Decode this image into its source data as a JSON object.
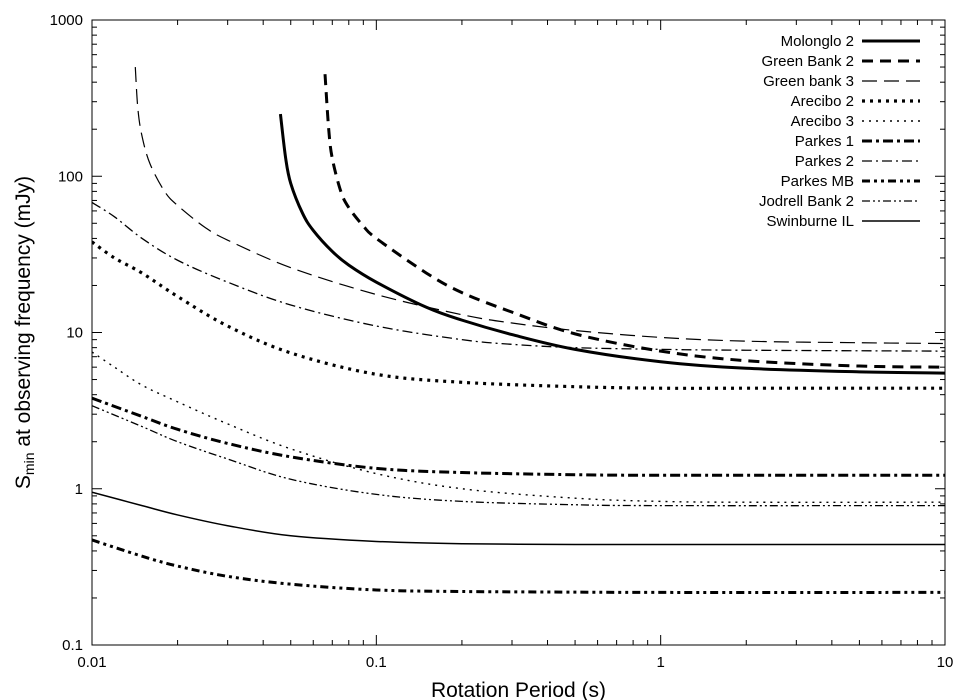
{
  "chart_data": {
    "type": "line",
    "title": "",
    "xlabel": "Rotation Period (s)",
    "ylabel": {
      "base": "S",
      "sub": "min",
      "rest": " at observing frequency (mJy)"
    },
    "xscale": "log",
    "yscale": "log",
    "xlim": [
      0.01,
      10
    ],
    "ylim": [
      0.1,
      1000
    ],
    "xticks": [
      0.01,
      0.1,
      1,
      10
    ],
    "xtick_labels": [
      "0.01",
      "0.1",
      "1",
      "10"
    ],
    "yticks": [
      0.1,
      1,
      10,
      100,
      1000
    ],
    "ytick_labels": [
      "0.1",
      "1",
      "10",
      "100",
      "1000"
    ],
    "grid": false,
    "legend_position": "top-right",
    "series": [
      {
        "name": "Molonglo 2",
        "style": "solid-thick",
        "x": [
          0.046,
          0.048,
          0.05,
          0.055,
          0.06,
          0.07,
          0.08,
          0.1,
          0.15,
          0.2,
          0.3,
          0.5,
          1,
          2,
          5,
          10
        ],
        "y": [
          250,
          130,
          90,
          58,
          45,
          33,
          27,
          21,
          14.5,
          12,
          9.7,
          7.8,
          6.5,
          5.9,
          5.6,
          5.5
        ]
      },
      {
        "name": "Green Bank 2",
        "style": "dashed-thick",
        "x": [
          0.066,
          0.068,
          0.07,
          0.075,
          0.08,
          0.09,
          0.1,
          0.15,
          0.2,
          0.3,
          0.5,
          1,
          2,
          5,
          10
        ],
        "y": [
          450,
          200,
          130,
          80,
          63,
          48,
          40,
          24,
          18,
          13.5,
          9.8,
          7.6,
          6.6,
          6.1,
          6.0
        ]
      },
      {
        "name": "Green bank 3",
        "style": "dashed-thin",
        "x": [
          0.0142,
          0.0145,
          0.015,
          0.016,
          0.018,
          0.02,
          0.025,
          0.03,
          0.05,
          0.1,
          0.2,
          0.3,
          0.5,
          1,
          2,
          5,
          10
        ],
        "y": [
          500,
          270,
          180,
          120,
          80,
          65,
          47,
          39,
          26,
          17.5,
          13,
          11.5,
          10.3,
          9.3,
          8.8,
          8.6,
          8.5
        ]
      },
      {
        "name": "Arecibo 2",
        "style": "dotted-thick",
        "x": [
          0.01,
          0.012,
          0.015,
          0.02,
          0.03,
          0.05,
          0.1,
          0.2,
          0.5,
          1,
          2,
          10
        ],
        "y": [
          38,
          30,
          24,
          17,
          11,
          7.4,
          5.4,
          4.8,
          4.5,
          4.4,
          4.4,
          4.4
        ]
      },
      {
        "name": "Arecibo 3",
        "style": "dotted-thin",
        "x": [
          0.01,
          0.012,
          0.015,
          0.02,
          0.03,
          0.05,
          0.1,
          0.2,
          0.5,
          1,
          2,
          10
        ],
        "y": [
          7.5,
          6,
          4.6,
          3.6,
          2.6,
          1.8,
          1.25,
          1.0,
          0.87,
          0.83,
          0.82,
          0.82
        ]
      },
      {
        "name": "Parkes 1",
        "style": "dashdot-thick",
        "x": [
          0.01,
          0.015,
          0.02,
          0.03,
          0.05,
          0.1,
          0.2,
          0.5,
          1,
          10
        ],
        "y": [
          3.8,
          2.9,
          2.4,
          1.95,
          1.6,
          1.35,
          1.27,
          1.23,
          1.22,
          1.22
        ]
      },
      {
        "name": "Parkes 2",
        "style": "dashdot-thin",
        "x": [
          0.01,
          0.012,
          0.015,
          0.02,
          0.03,
          0.05,
          0.1,
          0.2,
          0.3,
          0.5,
          1,
          2,
          10
        ],
        "y": [
          68,
          55,
          40,
          29,
          21,
          15,
          11,
          9,
          8.4,
          8,
          7.8,
          7.7,
          7.6
        ]
      },
      {
        "name": "Parkes MB",
        "style": "dashdotdot-thick",
        "x": [
          0.01,
          0.015,
          0.02,
          0.03,
          0.05,
          0.1,
          0.2,
          0.5,
          1,
          10
        ],
        "y": [
          0.47,
          0.37,
          0.32,
          0.275,
          0.245,
          0.225,
          0.22,
          0.218,
          0.217,
          0.217
        ]
      },
      {
        "name": "Jodrell Bank 2",
        "style": "dashdotdot-thin",
        "x": [
          0.01,
          0.015,
          0.02,
          0.03,
          0.05,
          0.1,
          0.2,
          0.5,
          1,
          10
        ],
        "y": [
          3.4,
          2.5,
          2.0,
          1.55,
          1.15,
          0.92,
          0.83,
          0.79,
          0.78,
          0.78
        ]
      },
      {
        "name": "Swinburne IL",
        "style": "solid-thin",
        "x": [
          0.01,
          0.015,
          0.02,
          0.03,
          0.05,
          0.1,
          0.2,
          0.5,
          1,
          10
        ],
        "y": [
          0.95,
          0.78,
          0.68,
          0.58,
          0.5,
          0.46,
          0.445,
          0.44,
          0.44,
          0.44
        ]
      }
    ]
  }
}
